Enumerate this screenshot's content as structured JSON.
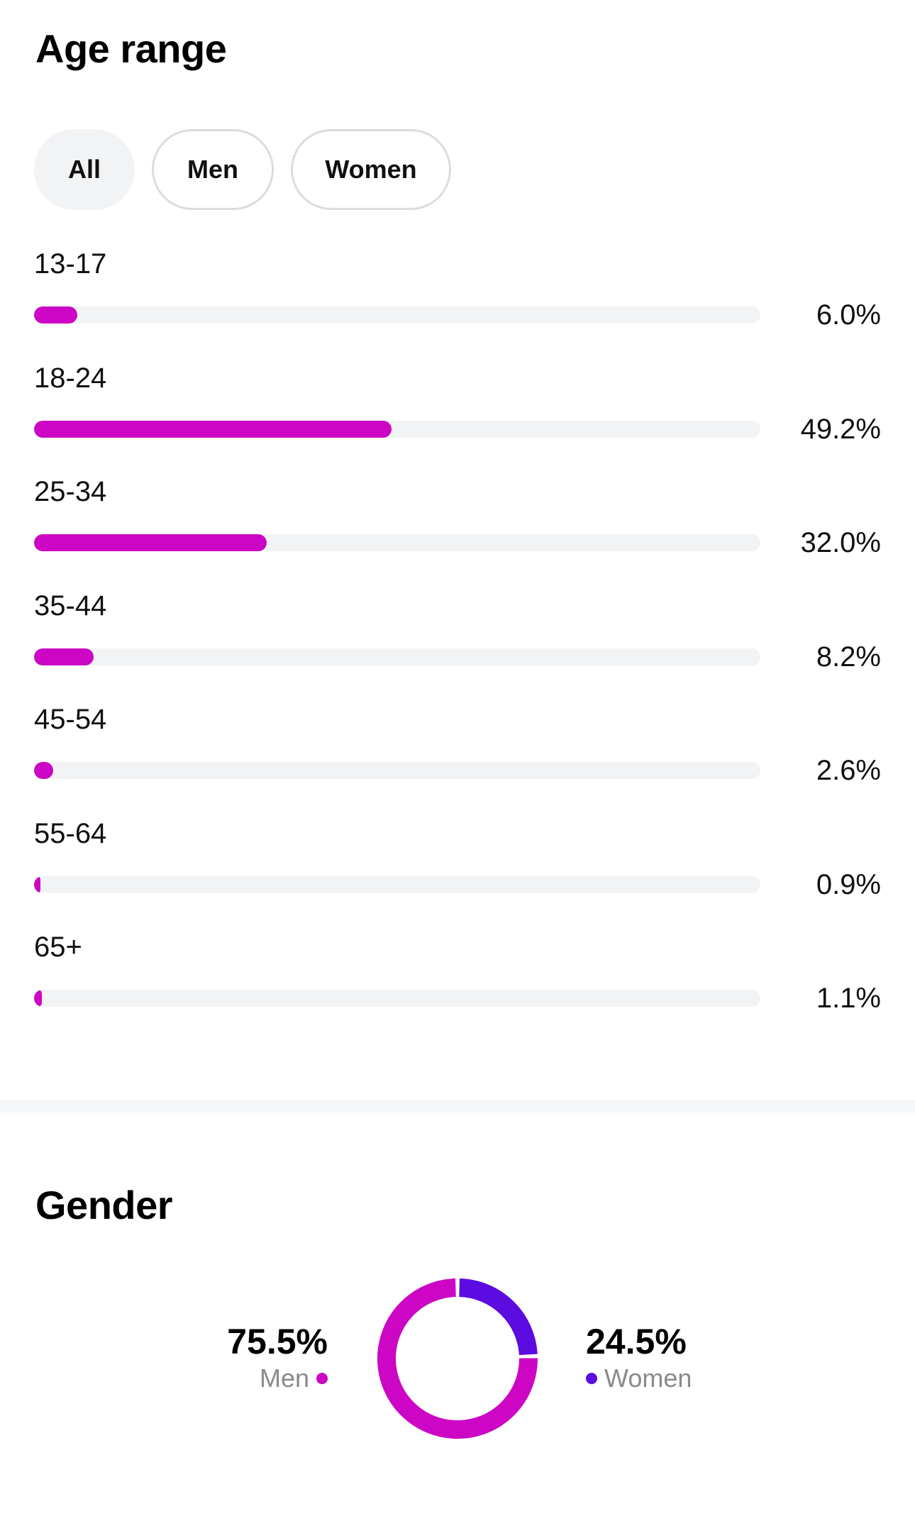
{
  "age_section": {
    "title": "Age range",
    "tabs": [
      {
        "label": "All",
        "active": true
      },
      {
        "label": "Men",
        "active": false
      },
      {
        "label": "Women",
        "active": false
      }
    ],
    "bar_color": "#cc06c4",
    "track_color": "#f2f3f5",
    "rows": [
      {
        "label": "13-17",
        "value": "6.0%",
        "fraction": 0.06
      },
      {
        "label": "18-24",
        "value": "49.2%",
        "fraction": 0.492
      },
      {
        "label": "25-34",
        "value": "32.0%",
        "fraction": 0.32
      },
      {
        "label": "35-44",
        "value": "8.2%",
        "fraction": 0.082
      },
      {
        "label": "45-54",
        "value": "2.6%",
        "fraction": 0.026
      },
      {
        "label": "55-64",
        "value": "0.9%",
        "fraction": 0.009
      },
      {
        "label": "65+",
        "value": "1.1%",
        "fraction": 0.011
      }
    ]
  },
  "gender_section": {
    "title": "Gender",
    "men": {
      "value": "75.5%",
      "label": "Men",
      "fraction": 0.755,
      "color": "#cc06c4"
    },
    "women": {
      "value": "24.5%",
      "label": "Women",
      "fraction": 0.245,
      "color": "#5b0ce0"
    }
  }
}
